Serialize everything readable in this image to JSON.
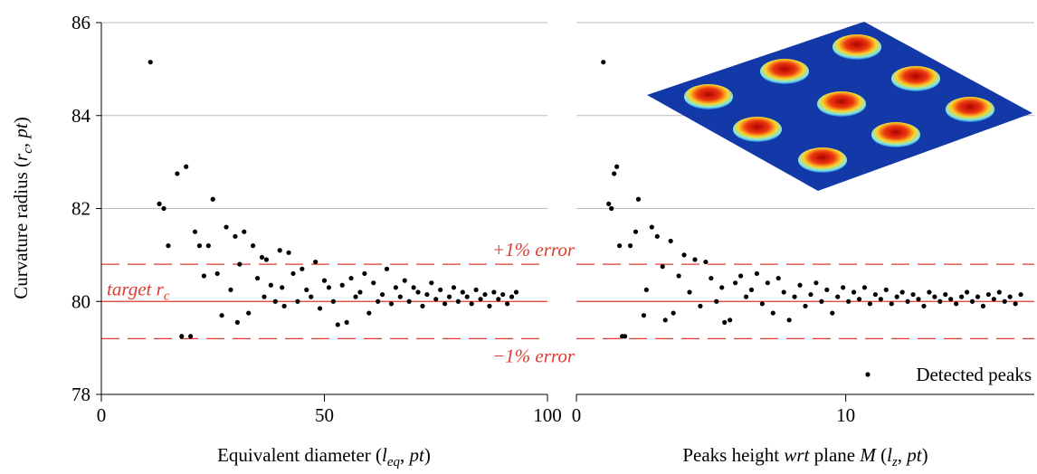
{
  "chart_data": [
    {
      "type": "scatter",
      "ylabel": [
        "Curvature radius (",
        "r",
        "c",
        ", ",
        "pt",
        ")"
      ],
      "xlabel": [
        "Equivalent diameter (",
        "l",
        "eq",
        ", ",
        "pt",
        ")"
      ],
      "xlim": [
        0,
        100
      ],
      "xticks": [
        0,
        50,
        100
      ],
      "ylim": [
        78,
        86
      ],
      "yticks": [
        78,
        80,
        82,
        84,
        86
      ],
      "grid": true,
      "hlines": [
        80.8,
        80,
        79.2
      ],
      "hline_color": "#e03c31",
      "annotations": [
        [
          "+1% error"
        ],
        [
          "target r",
          "c"
        ],
        [
          "−1% error"
        ]
      ],
      "series": [
        {
          "color": "#000000",
          "x": [
            11,
            13,
            14,
            15,
            17,
            18,
            19,
            20,
            21,
            22,
            23,
            24,
            25,
            26,
            27,
            28,
            29,
            30,
            30.5,
            31,
            32,
            33,
            34,
            35,
            36,
            36.5,
            37,
            38,
            39,
            40,
            40.5,
            41,
            42,
            43,
            44,
            45,
            46,
            47,
            48,
            49,
            50,
            51,
            52,
            53,
            54,
            55,
            56,
            57,
            58,
            59,
            60,
            61,
            62,
            63,
            64,
            65,
            66,
            67,
            68,
            69,
            70,
            71,
            72,
            73,
            74,
            75,
            76,
            77,
            78,
            79,
            80,
            81,
            82,
            83,
            84,
            85,
            86,
            87,
            88,
            89,
            90,
            91,
            92,
            93
          ],
          "values": [
            85.15,
            82.1,
            82.0,
            81.2,
            82.75,
            79.25,
            82.9,
            79.25,
            81.5,
            81.2,
            80.55,
            81.2,
            82.2,
            80.6,
            79.7,
            81.6,
            80.25,
            81.4,
            79.55,
            80.8,
            81.5,
            79.75,
            81.2,
            80.5,
            80.95,
            80.1,
            80.9,
            80.35,
            80.0,
            81.1,
            80.3,
            79.9,
            81.05,
            80.6,
            80.0,
            80.7,
            80.25,
            80.1,
            80.85,
            79.85,
            80.45,
            80.3,
            80.0,
            79.5,
            80.35,
            79.55,
            80.5,
            80.1,
            80.2,
            80.6,
            79.75,
            80.4,
            80.0,
            80.15,
            80.7,
            79.95,
            80.3,
            80.1,
            80.45,
            80.0,
            80.3,
            80.2,
            79.9,
            80.15,
            80.4,
            80.05,
            80.25,
            79.95,
            80.1,
            80.3,
            80.0,
            80.2,
            80.1,
            79.95,
            80.25,
            80.05,
            80.15,
            79.9,
            80.2,
            80.05,
            80.15,
            79.95,
            80.1,
            80.2
          ]
        }
      ]
    },
    {
      "type": "scatter",
      "xlabel": [
        "Peaks height ",
        "wrt",
        " plane ",
        "M",
        " (",
        "l",
        "z",
        ", ",
        "pt",
        ")"
      ],
      "xlim": [
        0,
        17
      ],
      "xticks": [
        0,
        10
      ],
      "ylim": [
        78,
        86
      ],
      "yticks": [
        78,
        80,
        82,
        84,
        86
      ],
      "grid": true,
      "hlines": [
        80.8,
        80,
        79.2
      ],
      "hline_color": "#e03c31",
      "legend": "lower right",
      "series": [
        {
          "name": "Detected peaks",
          "color": "#000000",
          "x": [
            1.0,
            1.2,
            1.3,
            1.4,
            1.5,
            1.6,
            1.7,
            1.8,
            2.0,
            2.2,
            2.3,
            2.5,
            2.6,
            2.8,
            3.0,
            3.2,
            3.3,
            3.5,
            3.6,
            3.8,
            4.0,
            4.2,
            4.4,
            4.6,
            4.8,
            5.0,
            5.2,
            5.4,
            5.5,
            5.7,
            5.9,
            6.1,
            6.3,
            6.5,
            6.7,
            6.9,
            7.1,
            7.3,
            7.5,
            7.7,
            7.9,
            8.1,
            8.3,
            8.5,
            8.7,
            8.9,
            9.1,
            9.3,
            9.5,
            9.7,
            9.9,
            10.1,
            10.3,
            10.5,
            10.7,
            10.9,
            11.1,
            11.3,
            11.5,
            11.7,
            11.9,
            12.1,
            12.3,
            12.5,
            12.7,
            12.9,
            13.1,
            13.3,
            13.5,
            13.7,
            13.9,
            14.1,
            14.3,
            14.5,
            14.7,
            14.9,
            15.1,
            15.3,
            15.5,
            15.7,
            15.9,
            16.1,
            16.3,
            16.5
          ],
          "values": [
            85.15,
            82.1,
            82.0,
            82.75,
            82.9,
            81.2,
            79.25,
            79.25,
            81.2,
            81.5,
            82.2,
            79.7,
            80.25,
            81.6,
            81.4,
            80.75,
            79.6,
            81.3,
            79.75,
            80.55,
            81.0,
            80.2,
            80.9,
            79.9,
            80.85,
            80.5,
            80.0,
            80.3,
            79.55,
            79.6,
            80.4,
            80.55,
            80.1,
            80.25,
            80.6,
            79.95,
            80.4,
            79.75,
            80.5,
            80.2,
            79.6,
            80.1,
            80.35,
            79.9,
            80.15,
            80.4,
            80.0,
            80.25,
            79.75,
            80.1,
            80.3,
            80.0,
            80.2,
            80.05,
            80.3,
            79.95,
            80.15,
            80.05,
            80.25,
            79.95,
            80.1,
            80.2,
            80.0,
            80.15,
            80.05,
            79.9,
            80.2,
            80.1,
            80.0,
            80.15,
            80.05,
            79.95,
            80.1,
            80.2,
            80.0,
            80.1,
            79.9,
            80.15,
            80.05,
            80.2,
            80.0,
            80.1,
            79.95,
            80.15
          ]
        }
      ]
    }
  ]
}
